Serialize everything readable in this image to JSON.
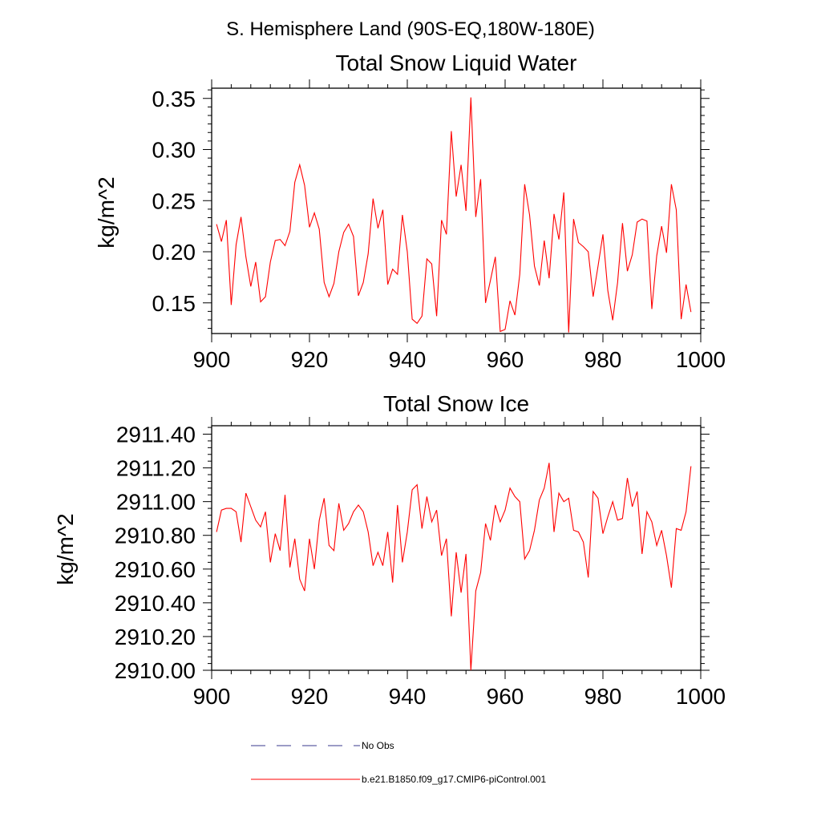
{
  "figure": {
    "title": "S. Hemisphere Land (90S-EQ,180W-180E)"
  },
  "legend": {
    "items": [
      {
        "label": "No Obs",
        "style": "dashed",
        "color": "#3a3a8c"
      },
      {
        "label": "b.e21.B1850.f09_g17.CMIP6-piControl.001",
        "style": "solid",
        "color": "#ff0000"
      }
    ]
  },
  "chart_data": [
    {
      "type": "line",
      "title": "Total Snow Liquid Water",
      "xlabel": "",
      "ylabel": "kg/m^2",
      "xlim": [
        900,
        1000
      ],
      "ylim": [
        0.12,
        0.36
      ],
      "xticks": [
        "900",
        "920",
        "940",
        "960",
        "980",
        "1000"
      ],
      "yticks": [
        "0.15",
        "0.20",
        "0.25",
        "0.30",
        "0.35"
      ],
      "ytick_values": [
        0.15,
        0.2,
        0.25,
        0.3,
        0.35
      ],
      "color": "#ff0000",
      "x": [
        901,
        902,
        903,
        904,
        905,
        906,
        907,
        908,
        909,
        910,
        911,
        912,
        913,
        914,
        915,
        916,
        917,
        918,
        919,
        920,
        921,
        922,
        923,
        924,
        925,
        926,
        927,
        928,
        929,
        930,
        931,
        932,
        933,
        934,
        935,
        936,
        937,
        938,
        939,
        940,
        941,
        942,
        943,
        944,
        945,
        946,
        947,
        948,
        949,
        950,
        951,
        952,
        953,
        954,
        955,
        956,
        957,
        958,
        959,
        960,
        961,
        962,
        963,
        964,
        965,
        966,
        967,
        968,
        969,
        970,
        971,
        972,
        973,
        974,
        975,
        976,
        977,
        978,
        979,
        980,
        981,
        982,
        983,
        984,
        985,
        986,
        987,
        988,
        989,
        990,
        991,
        992,
        993,
        994,
        995,
        996,
        997,
        998
      ],
      "y": [
        0.227,
        0.21,
        0.231,
        0.148,
        0.207,
        0.234,
        0.195,
        0.166,
        0.19,
        0.151,
        0.156,
        0.19,
        0.211,
        0.212,
        0.206,
        0.22,
        0.268,
        0.285,
        0.265,
        0.224,
        0.238,
        0.222,
        0.17,
        0.156,
        0.169,
        0.2,
        0.219,
        0.227,
        0.215,
        0.157,
        0.17,
        0.198,
        0.252,
        0.223,
        0.241,
        0.168,
        0.183,
        0.178,
        0.236,
        0.2,
        0.134,
        0.13,
        0.137,
        0.193,
        0.188,
        0.137,
        0.231,
        0.217,
        0.318,
        0.254,
        0.285,
        0.24,
        0.351,
        0.234,
        0.271,
        0.15,
        0.172,
        0.195,
        0.122,
        0.124,
        0.152,
        0.138,
        0.178,
        0.266,
        0.236,
        0.186,
        0.167,
        0.211,
        0.174,
        0.237,
        0.212,
        0.258,
        0.121,
        0.232,
        0.209,
        0.205,
        0.2,
        0.156,
        0.186,
        0.217,
        0.162,
        0.133,
        0.17,
        0.228,
        0.181,
        0.197,
        0.229,
        0.232,
        0.23,
        0.144,
        0.196,
        0.225,
        0.199,
        0.266,
        0.241,
        0.134,
        0.168,
        0.141
      ]
    },
    {
      "type": "line",
      "title": "Total Snow Ice",
      "xlabel": "",
      "ylabel": "kg/m^2",
      "xlim": [
        900,
        1000
      ],
      "ylim": [
        2910.0,
        2911.45
      ],
      "xticks": [
        "900",
        "920",
        "940",
        "960",
        "980",
        "1000"
      ],
      "yticks": [
        "2910.00",
        "2910.20",
        "2910.40",
        "2910.60",
        "2910.80",
        "2911.00",
        "2911.20",
        "2911.40"
      ],
      "ytick_values": [
        2910.0,
        2910.2,
        2910.4,
        2910.6,
        2910.8,
        2911.0,
        2911.2,
        2911.4
      ],
      "color": "#ff0000",
      "x": [
        901,
        902,
        903,
        904,
        905,
        906,
        907,
        908,
        909,
        910,
        911,
        912,
        913,
        914,
        915,
        916,
        917,
        918,
        919,
        920,
        921,
        922,
        923,
        924,
        925,
        926,
        927,
        928,
        929,
        930,
        931,
        932,
        933,
        934,
        935,
        936,
        937,
        938,
        939,
        940,
        941,
        942,
        943,
        944,
        945,
        946,
        947,
        948,
        949,
        950,
        951,
        952,
        953,
        954,
        955,
        956,
        957,
        958,
        959,
        960,
        961,
        962,
        963,
        964,
        965,
        966,
        967,
        968,
        969,
        970,
        971,
        972,
        973,
        974,
        975,
        976,
        977,
        978,
        979,
        980,
        981,
        982,
        983,
        984,
        985,
        986,
        987,
        988,
        989,
        990,
        991,
        992,
        993,
        994,
        995,
        996,
        997,
        998
      ],
      "y": [
        2910.82,
        2910.95,
        2910.96,
        2910.96,
        2910.94,
        2910.76,
        2911.05,
        2910.97,
        2910.89,
        2910.85,
        2910.94,
        2910.64,
        2910.81,
        2910.71,
        2911.04,
        2910.61,
        2910.78,
        2910.54,
        2910.47,
        2910.78,
        2910.6,
        2910.89,
        2911.02,
        2910.74,
        2910.71,
        2910.99,
        2910.83,
        2910.87,
        2910.94,
        2910.98,
        2910.94,
        2910.82,
        2910.62,
        2910.7,
        2910.62,
        2910.82,
        2910.52,
        2910.98,
        2910.64,
        2910.82,
        2911.07,
        2911.1,
        2910.84,
        2911.03,
        2910.88,
        2910.95,
        2910.68,
        2910.78,
        2910.32,
        2910.7,
        2910.46,
        2910.69,
        2910.0,
        2910.47,
        2910.58,
        2910.87,
        2910.77,
        2910.98,
        2910.88,
        2910.95,
        2911.08,
        2911.03,
        2911.0,
        2910.66,
        2910.71,
        2910.83,
        2911.01,
        2911.08,
        2911.23,
        2910.82,
        2911.05,
        2911.0,
        2911.02,
        2910.83,
        2910.82,
        2910.76,
        2910.55,
        2911.06,
        2911.02,
        2910.81,
        2910.91,
        2911.0,
        2910.89,
        2910.9,
        2911.14,
        2910.97,
        2911.06,
        2910.69,
        2910.94,
        2910.88,
        2910.74,
        2910.83,
        2910.68,
        2910.49,
        2910.84,
        2910.83,
        2910.94,
        2911.21
      ]
    }
  ]
}
